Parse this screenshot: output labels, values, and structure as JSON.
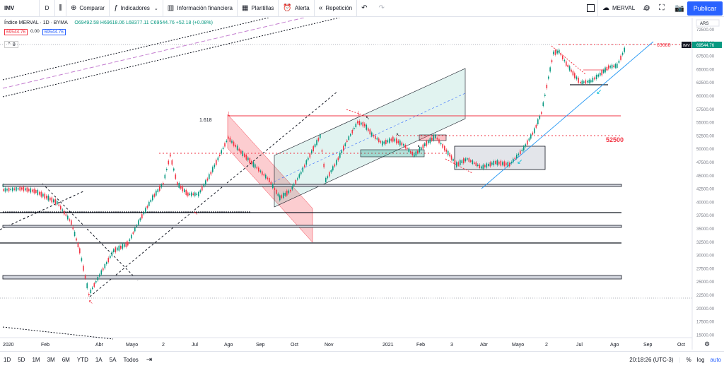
{
  "toolbar": {
    "symbol": "IMV",
    "interval": "D",
    "compare": "Comparar",
    "indicators": "Indicadores",
    "financial": "Información financiera",
    "templates": "Plantillas",
    "alert": "Alerta",
    "replay": "Repetición",
    "compare_symbol": "MERVAL",
    "publish": "Publicar"
  },
  "legend": {
    "title": "Índice MERVAL · 1D · BYMA",
    "ohlc": "O69492.58 H69618.06 L68377.11 C69544.76 +52.18 (+0.08%)",
    "price_left": "69544.76",
    "spread": "0.00",
    "price_right": "69544.76",
    "collapse": "8"
  },
  "price_axis": {
    "currency": "ARS",
    "ticks": [
      "72500.00",
      "70000.00",
      "67500.00",
      "65000.00",
      "62500.00",
      "60000.00",
      "57500.00",
      "55000.00",
      "52500.00",
      "50000.00",
      "47500.00",
      "45000.00",
      "42500.00",
      "40000.00",
      "37500.00",
      "35000.00",
      "32500.00",
      "30000.00",
      "27500.00",
      "25000.00",
      "22500.00",
      "20000.00",
      "17500.00",
      "15000.00"
    ],
    "last_tag_symbol": "IMV",
    "last_tag_value": "69544.76"
  },
  "time_axis": [
    "2020",
    "Feb",
    "Abr",
    "Mayo",
    "2",
    "Jul",
    "Ago",
    "Sep",
    "Oct",
    "Nov",
    "2021",
    "Feb",
    "3",
    "Abr",
    "Mayo",
    "2",
    "Jul",
    "Ago",
    "Sep",
    "Oct"
  ],
  "annotations": {
    "fib": "1.618",
    "level_high": "69688",
    "level_mid": "52500"
  },
  "ranges": [
    "1D",
    "5D",
    "1M",
    "3M",
    "6M",
    "YTD",
    "1A",
    "5A",
    "Todos"
  ],
  "status": {
    "time": "20:18:26 (UTC-3)",
    "percent": "%",
    "log": "log",
    "auto": "auto"
  },
  "colors": {
    "up": "#089981",
    "down": "#f23645",
    "accent": "#2962ff"
  }
}
